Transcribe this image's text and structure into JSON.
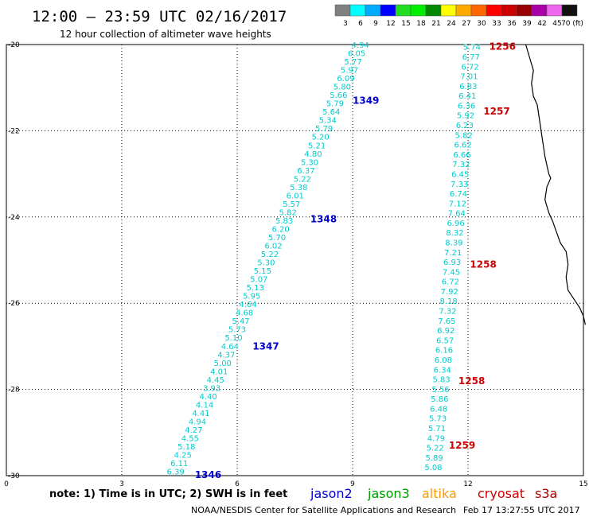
{
  "title": "12:00 – 23:59 UTC 02/16/2017",
  "subtitle": "12 hour collection of altimeter wave heights",
  "note": "note: 1) Time is in UTC; 2) SWH is in feet",
  "footer": {
    "center": "NOAA/NESDIS Center for Satellite Applications and Research",
    "timestamp": "Feb 17 13:27:55 UTC 2017"
  },
  "colorbar": {
    "labels": [
      "3",
      "6",
      "9",
      "12",
      "15",
      "18",
      "21",
      "24",
      "27",
      "30",
      "33",
      "36",
      "39",
      "42",
      "45",
      "70 (ft)"
    ],
    "colors": [
      "#808080",
      "#00ffff",
      "#00aaff",
      "#0000ff",
      "#22dd22",
      "#00ee00",
      "#008800",
      "#ffff00",
      "#ffaa00",
      "#ff6600",
      "#ff0000",
      "#cc0000",
      "#990000",
      "#aa00aa",
      "#ee66ee",
      "#111111"
    ]
  },
  "satellites": [
    {
      "name": "jason2",
      "color": "#0000cc"
    },
    {
      "name": "jason3",
      "color": "#009900"
    },
    {
      "name": "altika",
      "color": "#ff9900"
    },
    {
      "name": "cryosat",
      "color": "#cc0000"
    },
    {
      "name": "s3a",
      "color": "#aa0000"
    }
  ],
  "axes": {
    "x_ticks": [
      "0",
      "3",
      "6",
      "9",
      "12",
      "15"
    ],
    "y_ticks": [
      "-20",
      "-22",
      "-24",
      "-26",
      "-28",
      "-30"
    ],
    "x_range": [
      0,
      15
    ],
    "y_range": [
      -30,
      -20
    ]
  },
  "track1": {
    "values": [
      "4.94",
      "6.05",
      "5.77",
      "5.97",
      "6.09",
      "5.80",
      "5.66",
      "5.79",
      "5.64",
      "5.34",
      "5.79",
      "5.20",
      "5.21",
      "4.80",
      "5.30",
      "6.37",
      "5.22",
      "5.38",
      "6.01",
      "5.57",
      "5.82",
      "5.83",
      "6.20",
      "5.70",
      "6.02",
      "5.22",
      "5.30",
      "5.15",
      "5.07",
      "5.13",
      "5.95",
      "4.64",
      "4.68",
      "5.47",
      "5.73",
      "5.10",
      "4.64",
      "4.37",
      "5.00",
      "4.01",
      "4.45",
      "3.93",
      "4.40",
      "4.14",
      "4.41",
      "4.94",
      "4.27",
      "4.55",
      "5.18",
      "4.25",
      "6.11",
      "6.39"
    ],
    "pass_labels": [
      {
        "text": "1349",
        "x": 9.0,
        "y": -21.3
      },
      {
        "text": "1348",
        "x": 7.9,
        "y": -24.05
      },
      {
        "text": "1347",
        "x": 6.4,
        "y": -27.0
      },
      {
        "text": "1346",
        "x": 4.9,
        "y": -29.98
      }
    ]
  },
  "track2": {
    "values": [
      "5.74",
      "6.77",
      "6.72",
      "7.01",
      "6.83",
      "6.41",
      "6.36",
      "5.92",
      "6.23",
      "5.82",
      "6.62",
      "6.66",
      "7.32",
      "6.45",
      "7.33",
      "6.74",
      "7.12",
      "7.64",
      "6.96",
      "8.32",
      "8.39",
      "7.21",
      "6.93",
      "7.45",
      "6.72",
      "7.92",
      "8.18",
      "7.32",
      "7.65",
      "6.92",
      "6.57",
      "6.16",
      "6.08",
      "6.34",
      "5.83",
      "5.56",
      "5.86",
      "6.48",
      "5.73",
      "5.71",
      "4.79",
      "5.22",
      "5.89",
      "5.08"
    ],
    "pass_labels": [
      {
        "text": "1256",
        "x": 12.55,
        "y": -20.05
      },
      {
        "text": "1257",
        "x": 12.4,
        "y": -21.55
      },
      {
        "text": "1258",
        "x": 12.05,
        "y": -25.1
      },
      {
        "text": "1258",
        "x": 11.75,
        "y": -27.8
      },
      {
        "text": "1259",
        "x": 11.5,
        "y": -29.3
      }
    ]
  },
  "coastline": [
    [
      13.5,
      -20.0
    ],
    [
      13.6,
      -20.3
    ],
    [
      13.7,
      -20.6
    ],
    [
      13.65,
      -20.9
    ],
    [
      13.7,
      -21.2
    ],
    [
      13.8,
      -21.4
    ],
    [
      13.85,
      -21.7
    ],
    [
      13.9,
      -22.0
    ],
    [
      13.95,
      -22.3
    ],
    [
      14.0,
      -22.6
    ],
    [
      14.05,
      -22.8
    ],
    [
      14.1,
      -23.0
    ],
    [
      14.15,
      -23.1
    ],
    [
      14.05,
      -23.3
    ],
    [
      14.0,
      -23.6
    ],
    [
      14.1,
      -23.9
    ],
    [
      14.2,
      -24.1
    ],
    [
      14.3,
      -24.35
    ],
    [
      14.4,
      -24.6
    ],
    [
      14.55,
      -24.8
    ],
    [
      14.6,
      -25.1
    ],
    [
      14.55,
      -25.4
    ],
    [
      14.6,
      -25.7
    ],
    [
      14.75,
      -25.9
    ],
    [
      14.9,
      -26.1
    ],
    [
      15.0,
      -26.3
    ],
    [
      15.05,
      -26.5
    ]
  ]
}
